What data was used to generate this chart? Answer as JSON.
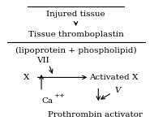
{
  "bg_color": "#ffffff",
  "title_text": "Injured tissue",
  "line1_text": "Tissue thromboplastin",
  "line2_text": "(lipoprotein + phospholipid)",
  "label_VII": "VII",
  "label_X": "X",
  "label_ActivatedX": "Activated X",
  "label_Ca": "Ca",
  "label_Ca_sup": "++",
  "label_V": "V",
  "label_Prothrombin": "Prothrombin activator",
  "figsize": [
    1.9,
    1.59
  ],
  "dpi": 100,
  "fontsize": 7.5
}
